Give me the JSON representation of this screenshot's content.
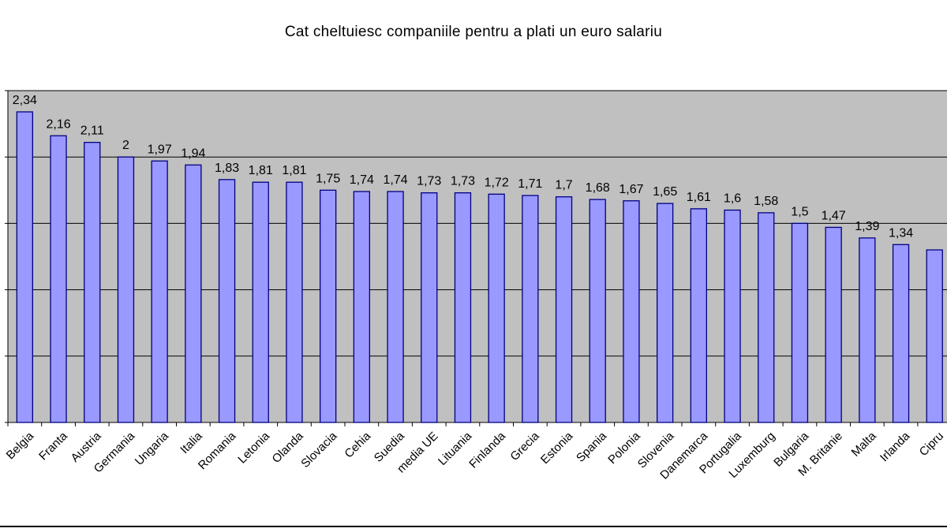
{
  "chart_data": {
    "type": "bar",
    "title": "Cat cheltuiesc companiile pentru a plati un euro salariu",
    "xlabel": "",
    "ylabel": "",
    "ylim": [
      0,
      2.5
    ],
    "grid": true,
    "legend": "none",
    "colors": {
      "bar": "#9999ff",
      "bar_edge": "#000080",
      "plot_bg": "#c0c0c0"
    },
    "categories": [
      "Belgia",
      "Franta",
      "Austria",
      "Germania",
      "Ungaria",
      "Italia",
      "Romania",
      "Letonia",
      "Olanda",
      "Slovacia",
      "Cehia",
      "Suedia",
      "media UE",
      "Lituania",
      "Finlanda",
      "Grecia",
      "Estonia",
      "Spania",
      "Polonia",
      "Slovenia",
      "Danemarca",
      "Portugalia",
      "Luxemburg",
      "Bulgaria",
      "M. Britanie",
      "Malta",
      "Irlanda",
      "Cipru"
    ],
    "values": [
      2.34,
      2.16,
      2.11,
      2,
      1.97,
      1.94,
      1.83,
      1.81,
      1.81,
      1.75,
      1.74,
      1.74,
      1.73,
      1.73,
      1.72,
      1.71,
      1.7,
      1.68,
      1.67,
      1.65,
      1.61,
      1.6,
      1.58,
      1.5,
      1.47,
      1.39,
      1.34,
      1.3
    ],
    "data_labels": [
      "2,34",
      "2,16",
      "2,11",
      "2",
      "1,97",
      "1,94",
      "1,83",
      "1,81",
      "1,81",
      "1,75",
      "1,74",
      "1,74",
      "1,73",
      "1,73",
      "1,72",
      "1,71",
      "1,7",
      "1,68",
      "1,67",
      "1,65",
      "1,61",
      "1,6",
      "1,58",
      "1,5",
      "1,47",
      "1,39",
      "1,34",
      ""
    ]
  }
}
